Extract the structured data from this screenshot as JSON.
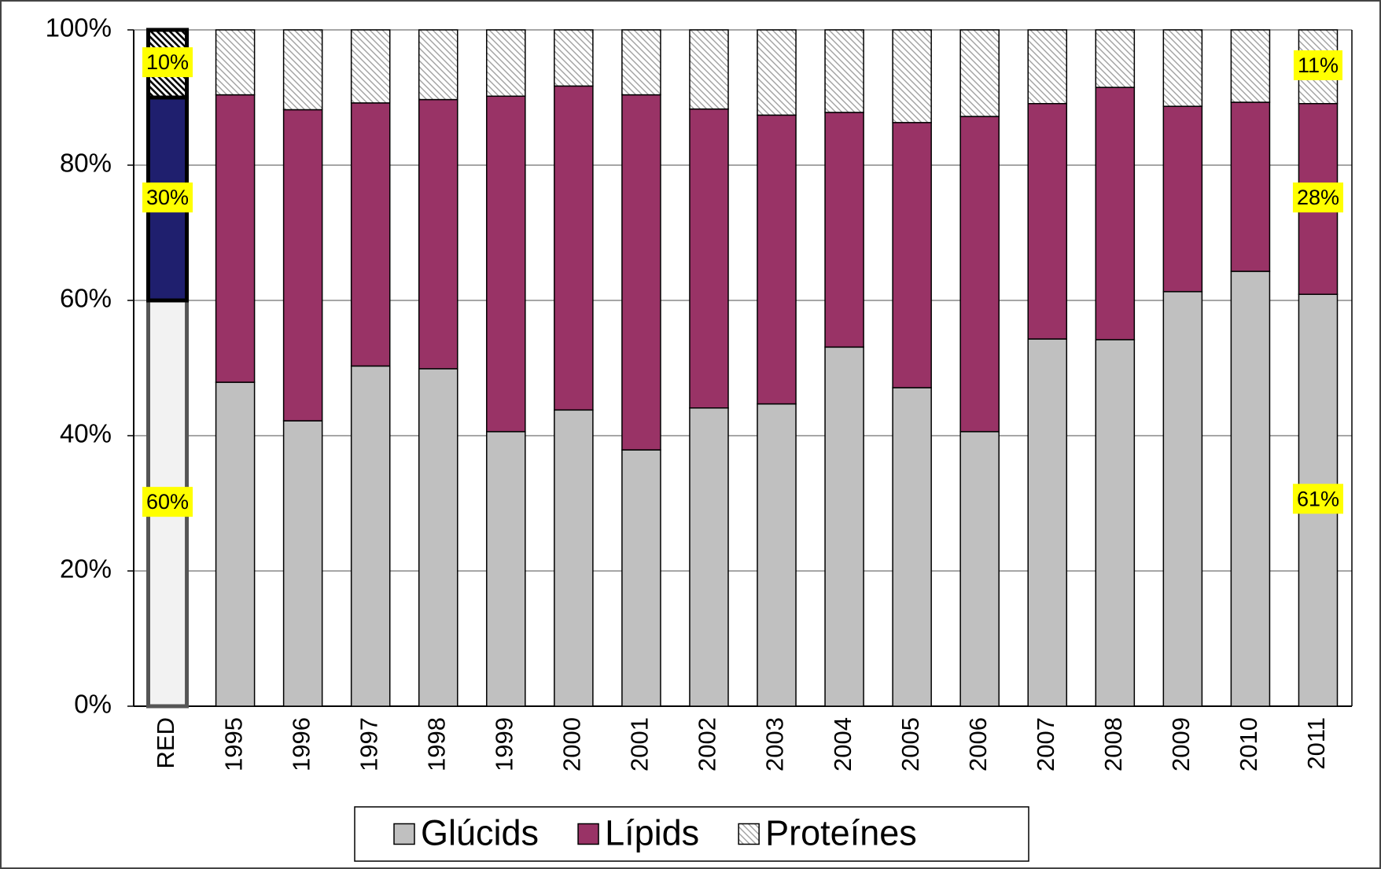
{
  "chart_data": {
    "type": "stacked_bar",
    "categories": [
      "RED",
      "1995",
      "1996",
      "1997",
      "1998",
      "1999",
      "2000",
      "2001",
      "2002",
      "2003",
      "2004",
      "2005",
      "2006",
      "2007",
      "2008",
      "2009",
      "2010",
      "2011"
    ],
    "series": [
      {
        "name": "Glúcids",
        "color": "#c0c0c0",
        "reference_color": "#f2f2f2",
        "values": [
          60,
          47.9,
          42.2,
          50.3,
          49.9,
          40.6,
          43.8,
          37.9,
          44.1,
          44.7,
          53.1,
          47.1,
          40.6,
          54.3,
          54.2,
          61.3,
          64.3,
          60.9
        ],
        "value_labels": [
          "60%",
          null,
          null,
          null,
          null,
          null,
          null,
          null,
          null,
          null,
          null,
          null,
          null,
          null,
          null,
          null,
          null,
          "61%"
        ]
      },
      {
        "name": "Lípids",
        "color": "#993366",
        "reference_color": "#1f1f6e",
        "values": [
          30,
          42.5,
          46.0,
          38.9,
          39.8,
          49.6,
          47.9,
          52.5,
          44.2,
          42.7,
          34.7,
          39.2,
          46.6,
          34.8,
          37.3,
          27.4,
          25.0,
          28.2
        ],
        "value_labels": [
          "30%",
          null,
          null,
          null,
          null,
          null,
          null,
          null,
          null,
          null,
          null,
          null,
          null,
          null,
          null,
          null,
          null,
          "28%"
        ]
      },
      {
        "name": "Proteínes",
        "color": "#a0a0a0",
        "reference_color": "#000000",
        "values": [
          10,
          9.6,
          11.8,
          10.8,
          10.3,
          9.8,
          8.3,
          9.6,
          11.7,
          12.6,
          12.2,
          13.7,
          12.8,
          10.9,
          8.5,
          11.3,
          10.7,
          10.9
        ],
        "value_labels": [
          "10%",
          null,
          null,
          null,
          null,
          null,
          null,
          null,
          null,
          null,
          null,
          null,
          null,
          null,
          null,
          null,
          null,
          "11%"
        ]
      }
    ],
    "ylim": [
      0,
      100
    ],
    "yticks": [
      {
        "value": 0,
        "label": "0%"
      },
      {
        "value": 20,
        "label": "20%"
      },
      {
        "value": 40,
        "label": "40%"
      },
      {
        "value": 60,
        "label": "60%"
      },
      {
        "value": 80,
        "label": "80%"
      },
      {
        "value": 100,
        "label": "100%"
      }
    ],
    "grid": true,
    "legend": "bottom"
  }
}
